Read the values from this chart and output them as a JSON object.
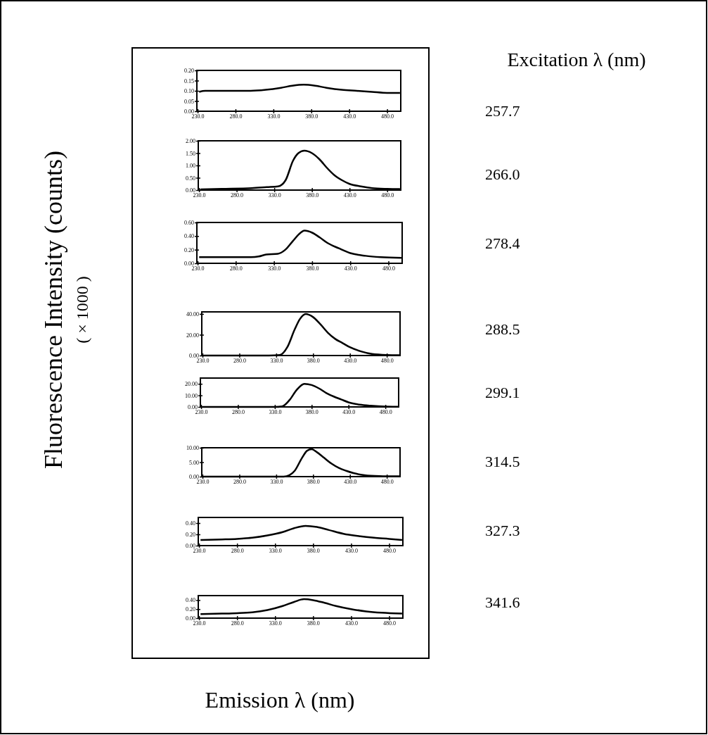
{
  "chart_data": [
    {
      "type": "line",
      "ylabel": "Fluorescence Intensity (counts)",
      "annotations": [
        "257.7",
        "( × 1000 )",
        "Excitation λ (nm)"
      ],
      "xlim": [
        229,
        498
      ],
      "ylim": [
        0,
        0.2
      ],
      "xticks": [
        {
          "value": 230,
          "label": "230.0"
        },
        {
          "value": 280,
          "label": "280.0"
        },
        {
          "value": 330,
          "label": "330.0"
        },
        {
          "value": 380,
          "label": "380.0"
        },
        {
          "value": 430,
          "label": "430.0"
        },
        {
          "value": 480,
          "label": "480.0"
        }
      ],
      "yticks": [
        {
          "value": 0,
          "label": "0.00"
        },
        {
          "value": 0.05,
          "label": "0.05"
        },
        {
          "value": 0.1,
          "label": "0.10"
        },
        {
          "value": 0.15,
          "label": "0.15"
        },
        {
          "value": 0.2,
          "label": "0.20"
        }
      ],
      "x": [
        232,
        240,
        260,
        280,
        300,
        320,
        340,
        355,
        370,
        385,
        400,
        420,
        440,
        460,
        480,
        497
      ],
      "series": [
        {
          "color": "#000000",
          "values": [
            0.095,
            0.1,
            0.1,
            0.1,
            0.1,
            0.105,
            0.115,
            0.125,
            0.13,
            0.125,
            0.115,
            0.105,
            0.1,
            0.095,
            0.09,
            0.09
          ]
        }
      ]
    },
    {
      "type": "line",
      "annotations": [
        "266.0"
      ],
      "xlim": [
        229,
        498
      ],
      "ylim": [
        0,
        2
      ],
      "xticks": [
        {
          "value": 230,
          "label": "230.0"
        },
        {
          "value": 280,
          "label": "280.0"
        },
        {
          "value": 330,
          "label": "330.0"
        },
        {
          "value": 380,
          "label": "380.0"
        },
        {
          "value": 430,
          "label": "430.0"
        },
        {
          "value": 480,
          "label": "480.0"
        }
      ],
      "yticks": [
        {
          "value": 0,
          "label": "0.00"
        },
        {
          "value": 0.5,
          "label": "0.50"
        },
        {
          "value": 1,
          "label": "1.00"
        },
        {
          "value": 1.5,
          "label": "1.50"
        },
        {
          "value": 2,
          "label": "2.00"
        }
      ],
      "x": [
        232,
        260,
        300,
        320,
        335,
        345,
        355,
        362,
        370,
        380,
        390,
        400,
        410,
        420,
        430,
        445,
        460,
        480,
        497
      ],
      "series": [
        {
          "color": "#000000",
          "values": [
            0.03,
            0.05,
            0.08,
            0.12,
            0.15,
            0.4,
            1.2,
            1.5,
            1.6,
            1.5,
            1.25,
            0.9,
            0.6,
            0.4,
            0.25,
            0.15,
            0.08,
            0.05,
            0.04
          ]
        }
      ]
    },
    {
      "type": "line",
      "annotations": [
        "278.4"
      ],
      "xlim": [
        229,
        498
      ],
      "ylim": [
        0,
        0.6
      ],
      "xticks": [
        {
          "value": 230,
          "label": "230.0"
        },
        {
          "value": 280,
          "label": "280.0"
        },
        {
          "value": 330,
          "label": "330.0"
        },
        {
          "value": 380,
          "label": "380.0"
        },
        {
          "value": 430,
          "label": "430.0"
        },
        {
          "value": 480,
          "label": "480.0"
        }
      ],
      "yticks": [
        {
          "value": 0,
          "label": "0.00"
        },
        {
          "value": 0.2,
          "label": "0.20"
        },
        {
          "value": 0.4,
          "label": "0.40"
        },
        {
          "value": 0.6,
          "label": "0.60"
        }
      ],
      "x": [
        232,
        300,
        310,
        320,
        335,
        345,
        355,
        365,
        370,
        380,
        390,
        400,
        415,
        430,
        450,
        470,
        497
      ],
      "series": [
        {
          "color": "#000000",
          "values": [
            0.09,
            0.09,
            0.1,
            0.13,
            0.14,
            0.2,
            0.33,
            0.45,
            0.48,
            0.45,
            0.38,
            0.3,
            0.22,
            0.15,
            0.11,
            0.09,
            0.08
          ]
        }
      ]
    },
    {
      "type": "line",
      "annotations": [
        "288.5"
      ],
      "xlim": [
        229,
        498
      ],
      "ylim": [
        0,
        42
      ],
      "xticks": [
        {
          "value": 230,
          "label": "230.0"
        },
        {
          "value": 280,
          "label": "280.0"
        },
        {
          "value": 330,
          "label": "330.0"
        },
        {
          "value": 380,
          "label": "380.0"
        },
        {
          "value": 430,
          "label": "430.0"
        },
        {
          "value": 480,
          "label": "480.0"
        }
      ],
      "yticks": [
        {
          "value": 0,
          "label": "0.00"
        },
        {
          "value": 20,
          "label": "20.00"
        },
        {
          "value": 40,
          "label": "40.00"
        }
      ],
      "x": [
        232,
        320,
        335,
        345,
        355,
        362,
        370,
        380,
        390,
        400,
        410,
        420,
        430,
        445,
        460,
        480,
        497
      ],
      "series": [
        {
          "color": "#000000",
          "values": [
            0,
            0,
            0.5,
            8,
            25,
            35,
            40,
            37,
            30,
            22,
            16,
            12,
            8,
            4,
            1.5,
            0.5,
            0.3
          ]
        }
      ]
    },
    {
      "type": "line",
      "annotations": [
        "299.1"
      ],
      "xlim": [
        229,
        498
      ],
      "ylim": [
        0,
        25
      ],
      "xticks": [
        {
          "value": 230,
          "label": "230.0"
        },
        {
          "value": 280,
          "label": "280.0"
        },
        {
          "value": 330,
          "label": "330.0"
        },
        {
          "value": 380,
          "label": "380.0"
        },
        {
          "value": 430,
          "label": "430.0"
        },
        {
          "value": 480,
          "label": "480.0"
        }
      ],
      "yticks": [
        {
          "value": 0,
          "label": "0.00"
        },
        {
          "value": 10,
          "label": "10.00"
        },
        {
          "value": 20,
          "label": "20.00"
        }
      ],
      "x": [
        232,
        330,
        340,
        350,
        360,
        370,
        380,
        390,
        400,
        410,
        420,
        430,
        445,
        460,
        480,
        497
      ],
      "series": [
        {
          "color": "#000000",
          "values": [
            0,
            0,
            0.5,
            6,
            15,
            20,
            19,
            16,
            12,
            9,
            6.5,
            4,
            2,
            1,
            0.3,
            0.2
          ]
        }
      ]
    },
    {
      "type": "line",
      "annotations": [
        "314.5"
      ],
      "xlim": [
        229,
        498
      ],
      "ylim": [
        0,
        10
      ],
      "xticks": [
        {
          "value": 230,
          "label": "230.0"
        },
        {
          "value": 280,
          "label": "280.0"
        },
        {
          "value": 330,
          "label": "330.0"
        },
        {
          "value": 380,
          "label": "380.0"
        },
        {
          "value": 430,
          "label": "430.0"
        },
        {
          "value": 480,
          "label": "480.0"
        }
      ],
      "yticks": [
        {
          "value": 0,
          "label": "0.00"
        },
        {
          "value": 5,
          "label": "5.00"
        },
        {
          "value": 10,
          "label": "10.00"
        }
      ],
      "x": [
        232,
        340,
        348,
        355,
        365,
        372,
        378,
        385,
        395,
        405,
        415,
        425,
        435,
        450,
        470,
        497
      ],
      "series": [
        {
          "color": "#000000",
          "values": [
            0,
            0,
            0.5,
            2,
            6.5,
            9,
            9.5,
            8.5,
            6.5,
            4.5,
            3,
            2,
            1.2,
            0.5,
            0.2,
            0.1
          ]
        }
      ]
    },
    {
      "type": "line",
      "annotations": [
        "327.3"
      ],
      "xlim": [
        229,
        498
      ],
      "ylim": [
        0,
        0.5
      ],
      "xticks": [
        {
          "value": 230,
          "label": "230.0"
        },
        {
          "value": 280,
          "label": "280.0"
        },
        {
          "value": 330,
          "label": "330.0"
        },
        {
          "value": 380,
          "label": "380.0"
        },
        {
          "value": 430,
          "label": "430.0"
        },
        {
          "value": 480,
          "label": "480.0"
        }
      ],
      "yticks": [
        {
          "value": 0,
          "label": "0.00"
        },
        {
          "value": 0.2,
          "label": "0.20"
        },
        {
          "value": 0.4,
          "label": "0.40"
        }
      ],
      "x": [
        232,
        260,
        280,
        300,
        320,
        340,
        355,
        370,
        385,
        400,
        420,
        440,
        460,
        480,
        497
      ],
      "series": [
        {
          "color": "#000000",
          "values": [
            0.1,
            0.11,
            0.12,
            0.14,
            0.18,
            0.24,
            0.31,
            0.35,
            0.33,
            0.28,
            0.21,
            0.17,
            0.14,
            0.12,
            0.1
          ]
        }
      ]
    },
    {
      "type": "line",
      "annotations": [
        "341.6"
      ],
      "xlabel": "Emission λ (nm)",
      "xlim": [
        229,
        498
      ],
      "ylim": [
        0,
        0.5
      ],
      "xticks": [
        {
          "value": 230,
          "label": "230.0"
        },
        {
          "value": 280,
          "label": "280.0"
        },
        {
          "value": 330,
          "label": "330.0"
        },
        {
          "value": 380,
          "label": "380.0"
        },
        {
          "value": 430,
          "label": "430.0"
        },
        {
          "value": 480,
          "label": "480.0"
        }
      ],
      "yticks": [
        {
          "value": 0,
          "label": "0.00"
        },
        {
          "value": 0.2,
          "label": "0.20"
        },
        {
          "value": 0.4,
          "label": "0.40"
        }
      ],
      "x": [
        232,
        260,
        280,
        300,
        320,
        340,
        355,
        368,
        380,
        395,
        410,
        430,
        450,
        470,
        497
      ],
      "series": [
        {
          "color": "#000000",
          "values": [
            0.09,
            0.1,
            0.11,
            0.13,
            0.18,
            0.27,
            0.36,
            0.42,
            0.4,
            0.34,
            0.27,
            0.2,
            0.15,
            0.12,
            0.1
          ]
        }
      ]
    }
  ]
}
